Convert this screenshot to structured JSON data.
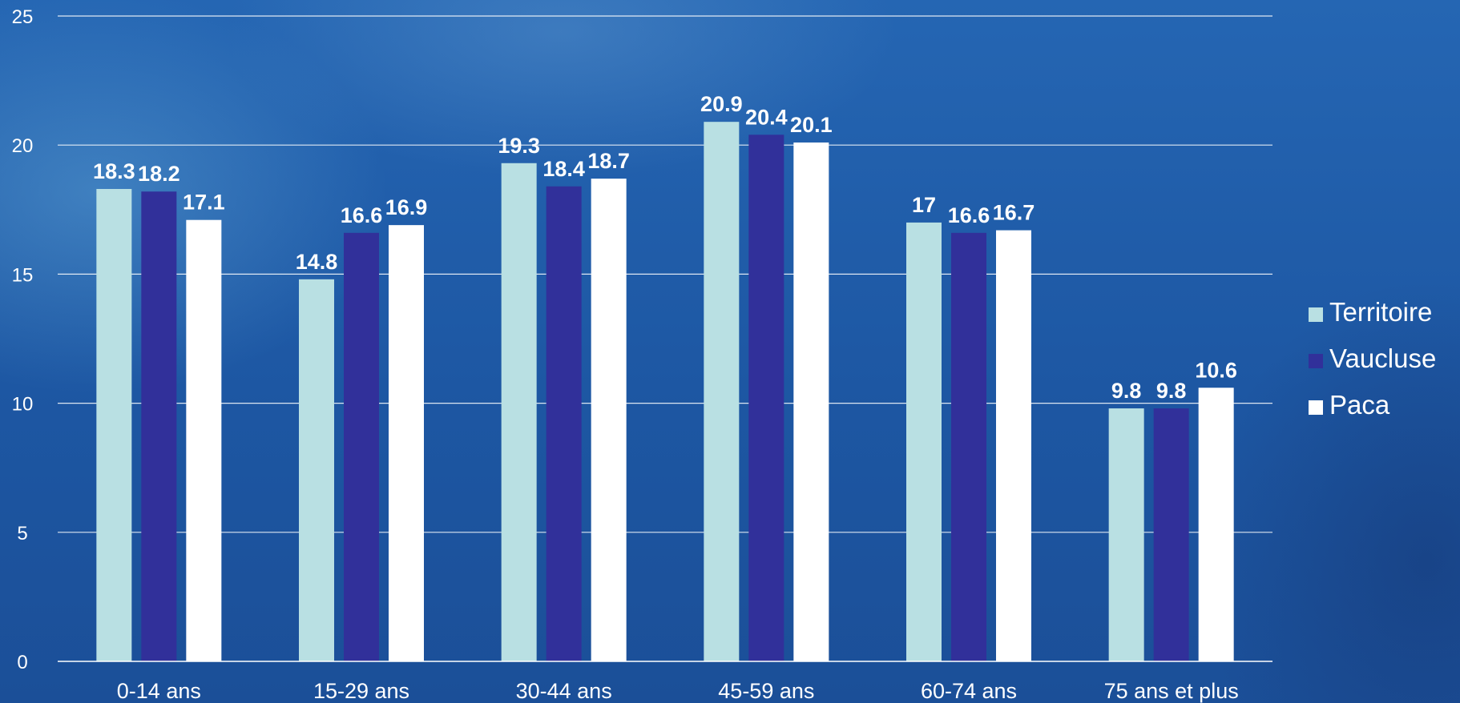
{
  "chart_data": {
    "type": "bar",
    "categories": [
      "0-14 ans",
      "15-29 ans",
      "30-44 ans",
      "45-59 ans",
      "60-74 ans",
      "75 ans et plus"
    ],
    "series": [
      {
        "name": "Territoire",
        "color": "#b9e0e3",
        "values": [
          18.3,
          14.8,
          19.3,
          20.9,
          17,
          9.8
        ]
      },
      {
        "name": "Vaucluse",
        "color": "#31309a",
        "values": [
          18.2,
          16.6,
          18.4,
          20.4,
          16.6,
          9.8
        ]
      },
      {
        "name": "Paca",
        "color": "#ffffff",
        "values": [
          17.1,
          16.9,
          18.7,
          20.1,
          16.7,
          10.6
        ]
      }
    ],
    "ylim": [
      0,
      25
    ],
    "yticks": [
      0,
      5,
      10,
      15,
      20,
      25
    ],
    "grid": true,
    "legend_position": "right",
    "data_labels": true
  }
}
